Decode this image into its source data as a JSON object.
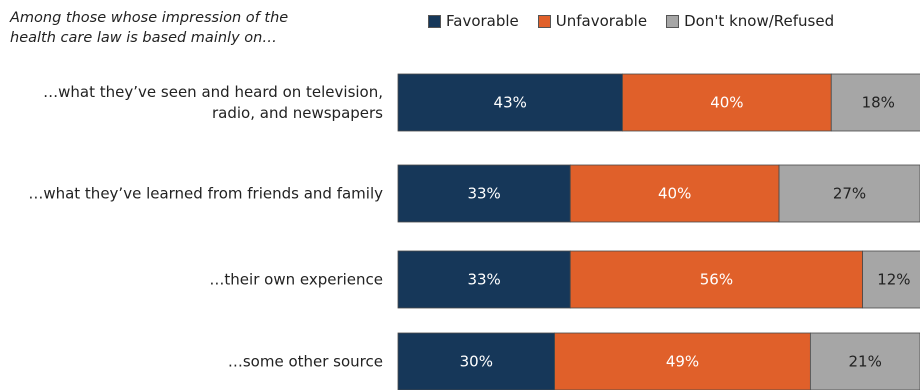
{
  "header_note": {
    "line1": "Among those whose impression of the",
    "line2": "health care law is based mainly on…"
  },
  "colors": {
    "favorable": "#163759",
    "unfavorable": "#e0602a",
    "dont_know": "#a6a6a6"
  },
  "chart_data": {
    "type": "bar",
    "orientation": "horizontal",
    "stacked": true,
    "title": "",
    "xlabel": "",
    "ylabel": "",
    "xlim": [
      0,
      100
    ],
    "grid": false,
    "legend_position": "top",
    "categories": [
      [
        "…what they’ve seen and heard on television,",
        "radio, and newspapers"
      ],
      [
        "…what they’ve learned from friends and family"
      ],
      [
        "…their own experience"
      ],
      [
        "…some other source"
      ]
    ],
    "series": [
      {
        "name": "Favorable",
        "values": [
          43,
          33,
          33,
          30
        ],
        "labels": [
          "43%",
          "33%",
          "33%",
          "30%"
        ],
        "color": "#163759"
      },
      {
        "name": "Unfavorable",
        "values": [
          40,
          40,
          56,
          49
        ],
        "labels": [
          "40%",
          "40%",
          "56%",
          "49%"
        ],
        "color": "#e0602a"
      },
      {
        "name": "Don't know/Refused",
        "values": [
          18,
          27,
          12,
          21
        ],
        "labels": [
          "18%",
          "27%",
          "12%",
          "21%"
        ],
        "color": "#a6a6a6"
      }
    ]
  }
}
